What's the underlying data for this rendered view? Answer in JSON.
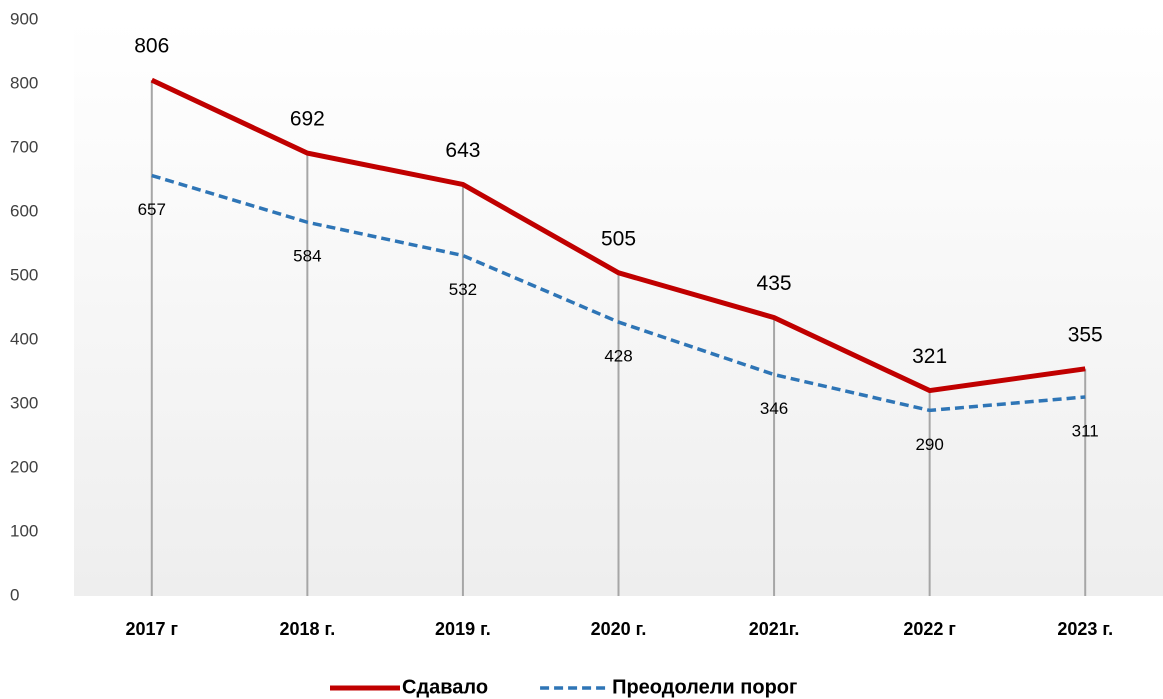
{
  "chart_data": {
    "type": "line",
    "categories": [
      "2017 г",
      "2018 г.",
      "2019 г.",
      "2020 г.",
      "2021г.",
      "2022 г",
      "2023 г."
    ],
    "series": [
      {
        "name": "Сдавало",
        "color": "#c00000",
        "values": [
          806,
          692,
          643,
          505,
          435,
          321,
          355
        ]
      },
      {
        "name": "Преодолели порог",
        "color": "#2e75b6",
        "values": [
          657,
          584,
          532,
          428,
          346,
          290,
          311
        ]
      }
    ],
    "ylim": [
      0,
      900
    ],
    "yticks": [
      0,
      100,
      200,
      300,
      400,
      500,
      600,
      700,
      800,
      900
    ],
    "legend": "bottom"
  }
}
